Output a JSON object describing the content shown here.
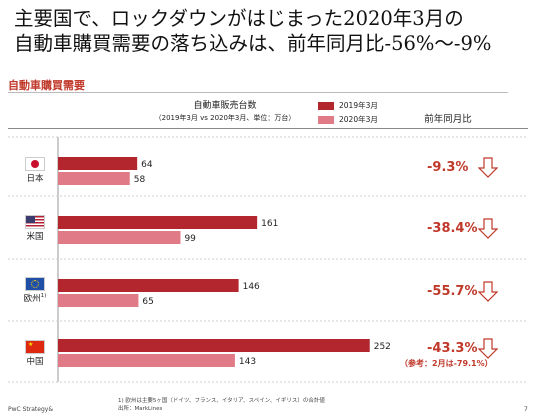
{
  "title": {
    "line1": "主要国で、ロックダウンがはじまった2020年3月の",
    "line2": "自動車購買需要の落ち込みは、前年同月比-56%～-9%"
  },
  "section_label": "自動車購買需要",
  "chart_data": {
    "type": "bar",
    "title": "自動車販売台数",
    "subtitle": "（2019年3月 vs 2020年3月、単位：万台）",
    "categories": [
      "日本",
      "米国",
      "欧州",
      "中国"
    ],
    "category_note_marks": [
      "",
      "",
      "1)",
      ""
    ],
    "series": [
      {
        "name": "2019年3月",
        "color": "#b3262e",
        "values": [
          64,
          161,
          146,
          252
        ]
      },
      {
        "name": "2020年3月",
        "color": "#e07a86",
        "values": [
          58,
          99,
          65,
          143
        ]
      }
    ],
    "xlim": [
      0,
      270
    ],
    "legend_position": "top-right",
    "yoy_header": "前年同月比",
    "yoy": [
      "-9.3%",
      "-38.4%",
      "-55.7%",
      "-43.3%"
    ]
  },
  "china_note": "（参考：2月は-79.1%）",
  "footnote_lines": [
    "1) 欧州は主要5ヶ国（ドイツ、フランス、イタリア、スペイン、イギリス）の合計値",
    "出所：MarkLines"
  ],
  "footer_left": "PwC Strategy&",
  "page_number": "7",
  "icons": {
    "flags": [
      "japan-flag-icon",
      "usa-flag-icon",
      "eu-flag-icon",
      "china-flag-icon"
    ],
    "arrow": "down-arrow-icon"
  }
}
